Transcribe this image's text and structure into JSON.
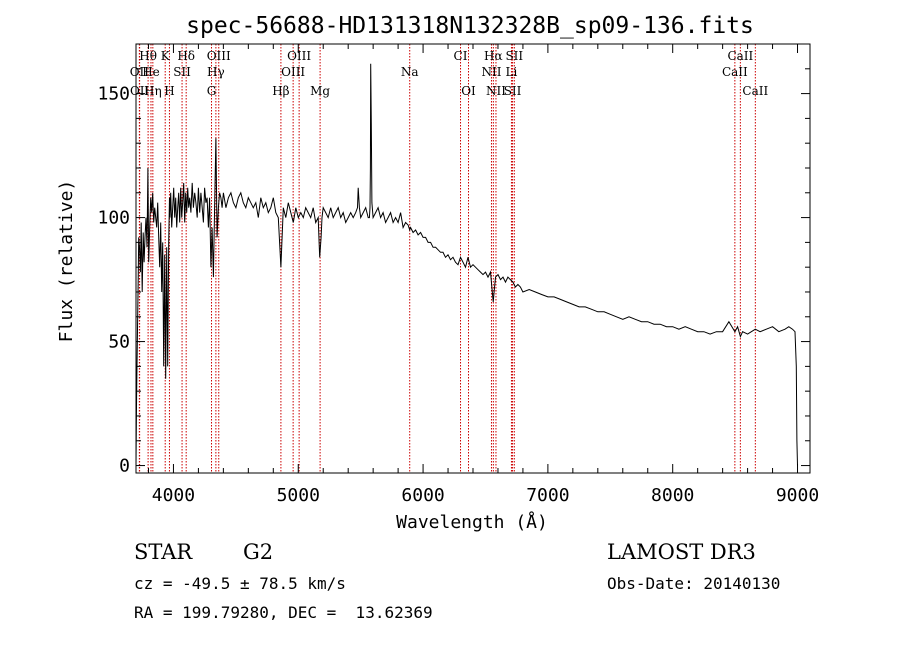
{
  "chart_data": {
    "type": "line",
    "title": "spec-56688-HD131318N132328B_sp09-136.fits",
    "xlabel": "Wavelength (Å)",
    "ylabel": "Flux (relative)",
    "xlim": [
      3700,
      9100
    ],
    "ylim": [
      -3,
      170
    ],
    "xticks": [
      4000,
      5000,
      6000,
      7000,
      8000,
      9000
    ],
    "yticks": [
      0,
      50,
      100,
      150
    ],
    "series": [
      {
        "name": "flux",
        "x": [
          3700,
          3705,
          3712,
          3718,
          3722,
          3728,
          3735,
          3742,
          3750,
          3758,
          3765,
          3772,
          3780,
          3788,
          3795,
          3802,
          3810,
          3818,
          3826,
          3834,
          3842,
          3850,
          3858,
          3866,
          3874,
          3882,
          3890,
          3898,
          3906,
          3914,
          3922,
          3930,
          3938,
          3946,
          3954,
          3962,
          3968,
          3972,
          3978,
          3986,
          3994,
          4002,
          4010,
          4018,
          4026,
          4034,
          4042,
          4050,
          4058,
          4066,
          4074,
          4082,
          4090,
          4098,
          4106,
          4114,
          4122,
          4130,
          4140,
          4150,
          4160,
          4170,
          4180,
          4190,
          4200,
          4210,
          4220,
          4230,
          4240,
          4250,
          4260,
          4270,
          4280,
          4290,
          4300,
          4310,
          4320,
          4330,
          4340,
          4350,
          4360,
          4370,
          4380,
          4390,
          4400,
          4420,
          4440,
          4460,
          4480,
          4500,
          4520,
          4540,
          4560,
          4580,
          4600,
          4620,
          4640,
          4660,
          4680,
          4700,
          4720,
          4740,
          4760,
          4780,
          4800,
          4820,
          4840,
          4861,
          4880,
          4900,
          4920,
          4940,
          4960,
          4980,
          5000,
          5020,
          5040,
          5060,
          5080,
          5100,
          5120,
          5140,
          5160,
          5167,
          5172,
          5183,
          5190,
          5200,
          5220,
          5240,
          5260,
          5280,
          5300,
          5320,
          5340,
          5360,
          5380,
          5400,
          5420,
          5440,
          5460,
          5475,
          5480,
          5490,
          5500,
          5520,
          5540,
          5560,
          5570,
          5575,
          5578,
          5580,
          5585,
          5590,
          5600,
          5620,
          5640,
          5660,
          5680,
          5700,
          5720,
          5740,
          5760,
          5780,
          5800,
          5820,
          5840,
          5860,
          5880,
          5893,
          5900,
          5920,
          5940,
          5960,
          5980,
          6000,
          6020,
          6040,
          6060,
          6080,
          6100,
          6120,
          6140,
          6160,
          6180,
          6200,
          6220,
          6240,
          6260,
          6280,
          6300,
          6320,
          6340,
          6360,
          6380,
          6400,
          6420,
          6440,
          6460,
          6480,
          6500,
          6520,
          6540,
          6562,
          6580,
          6600,
          6620,
          6640,
          6660,
          6680,
          6700,
          6720,
          6740,
          6760,
          6780,
          6800,
          6850,
          6900,
          6950,
          7000,
          7050,
          7100,
          7150,
          7200,
          7250,
          7300,
          7350,
          7400,
          7450,
          7500,
          7550,
          7600,
          7650,
          7700,
          7750,
          7800,
          7850,
          7900,
          7950,
          8000,
          8050,
          8100,
          8150,
          8200,
          8250,
          8300,
          8350,
          8400,
          8450,
          8498,
          8520,
          8542,
          8560,
          8600,
          8662,
          8700,
          8750,
          8800,
          8850,
          8900,
          8930,
          8960,
          8980,
          8990,
          8995,
          9000
        ],
        "y": [
          0,
          28,
          55,
          75,
          92,
          88,
          78,
          98,
          70,
          94,
          82,
          92,
          100,
          88,
          120,
          82,
          96,
          108,
          102,
          110,
          98,
          104,
          100,
          96,
          106,
          92,
          80,
          98,
          70,
          90,
          40,
          85,
          35,
          88,
          40,
          90,
          108,
          100,
          110,
          96,
          104,
          112,
          100,
          108,
          96,
          104,
          110,
          98,
          112,
          100,
          106,
          114,
          98,
          110,
          102,
          112,
          104,
          108,
          102,
          114,
          104,
          110,
          106,
          100,
          112,
          102,
          110,
          104,
          98,
          112,
          106,
          108,
          96,
          108,
          80,
          96,
          76,
          104,
          132,
          92,
          104,
          110,
          108,
          104,
          110,
          104,
          108,
          110,
          106,
          104,
          108,
          110,
          106,
          104,
          108,
          106,
          104,
          106,
          100,
          108,
          104,
          106,
          102,
          104,
          108,
          102,
          100,
          80,
          104,
          100,
          106,
          102,
          98,
          104,
          100,
          102,
          100,
          104,
          102,
          100,
          104,
          98,
          100,
          90,
          84,
          92,
          100,
          104,
          102,
          100,
          104,
          100,
          102,
          104,
          100,
          102,
          98,
          100,
          102,
          100,
          102,
          104,
          112,
          104,
          100,
          102,
          104,
          100,
          100,
          104,
          120,
          162,
          138,
          106,
          100,
          102,
          104,
          100,
          102,
          98,
          100,
          102,
          98,
          100,
          98,
          102,
          96,
          98,
          97,
          95,
          96,
          94,
          95,
          93,
          94,
          92,
          92,
          90,
          90,
          88,
          88,
          87,
          86,
          86,
          84,
          85,
          83,
          84,
          82,
          81,
          84,
          82,
          80,
          84,
          80,
          81,
          80,
          79,
          78,
          77,
          78,
          76,
          78,
          66,
          76,
          77,
          75,
          76,
          74,
          76,
          75,
          74,
          72,
          73,
          72,
          70,
          71,
          70,
          69,
          68,
          68,
          67,
          66,
          65,
          64,
          64,
          63,
          62,
          62,
          61,
          60,
          59,
          60,
          59,
          58,
          58,
          57,
          57,
          56,
          56,
          55,
          56,
          55,
          54,
          54,
          53,
          54,
          54,
          58,
          54,
          56,
          52,
          54,
          53,
          55,
          54,
          55,
          56,
          54,
          55,
          56,
          55,
          54,
          40,
          10,
          0
        ]
      }
    ],
    "line_markers": [
      {
        "label": "Hθ",
        "x": 3797,
        "row": 1
      },
      {
        "label": "K",
        "x": 3934,
        "row": 1
      },
      {
        "label": "Hδ",
        "x": 4102,
        "row": 1
      },
      {
        "label": "OIII",
        "x": 4363,
        "row": 1
      },
      {
        "label": "OIII",
        "x": 5007,
        "row": 1
      },
      {
        "label": "CI",
        "x": 6300,
        "row": 1
      },
      {
        "label": "Hα",
        "x": 6563,
        "row": 1
      },
      {
        "label": "SII",
        "x": 6731,
        "row": 1
      },
      {
        "label": "CaII",
        "x": 8542,
        "row": 1
      },
      {
        "label": "OII",
        "x": 3727,
        "row": 2
      },
      {
        "label": "He",
        "x": 3820,
        "row": 2
      },
      {
        "label": "SII",
        "x": 4069,
        "row": 2
      },
      {
        "label": "Hγ",
        "x": 4340,
        "row": 2
      },
      {
        "label": "OIII",
        "x": 4959,
        "row": 2
      },
      {
        "label": "Na",
        "x": 5893,
        "row": 2
      },
      {
        "label": "NII",
        "x": 6548,
        "row": 2
      },
      {
        "label": "Li",
        "x": 6708,
        "row": 2
      },
      {
        "label": "CaII",
        "x": 8498,
        "row": 2
      },
      {
        "label": "OII",
        "x": 3729,
        "row": 3
      },
      {
        "label": "Hη",
        "x": 3835,
        "row": 3
      },
      {
        "label": "H",
        "x": 3968,
        "row": 3
      },
      {
        "label": "G",
        "x": 4305,
        "row": 3
      },
      {
        "label": "Hβ",
        "x": 4861,
        "row": 3
      },
      {
        "label": "Mg",
        "x": 5175,
        "row": 3
      },
      {
        "label": "OI",
        "x": 6364,
        "row": 3
      },
      {
        "label": "NII",
        "x": 6584,
        "row": 3
      },
      {
        "label": "SII",
        "x": 6717,
        "row": 3
      },
      {
        "label": "CaII",
        "x": 8662,
        "row": 3
      }
    ]
  },
  "info": {
    "object_class": "STAR",
    "subclass": "G2",
    "survey": "LAMOST DR3",
    "redshift": "cz = -49.5 ± 78.5 km/s",
    "obs_date": "Obs-Date: 20140130",
    "coords": "RA = 199.79280, DEC =  13.62369"
  },
  "colors": {
    "spectrum": "#000000",
    "marker": "#cc0000",
    "background": "#ffffff"
  }
}
